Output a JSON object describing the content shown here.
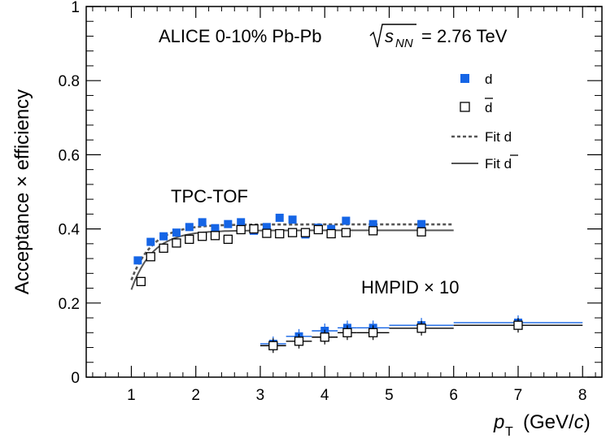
{
  "chart_data": {
    "type": "scatter",
    "title": "ALICE 0-10% Pb-Pb",
    "title_energy": "= 2.76 TeV",
    "title_sqrt": "s",
    "title_sqrt_sub": "NN",
    "xlabel_var": "p",
    "xlabel_sub": "T",
    "xlabel_units_pre": "(GeV/",
    "xlabel_units_c": "c",
    "xlabel_units_post": ")",
    "ylabel": "Acceptance × efficiency",
    "xlim": [
      0.3,
      8.3
    ],
    "ylim": [
      0,
      1
    ],
    "xticks": [
      1,
      2,
      3,
      4,
      5,
      6,
      7,
      8
    ],
    "yticks": [
      0,
      0.2,
      0.4,
      0.6,
      0.8,
      1
    ],
    "ytick_labels": [
      "0",
      "0.2",
      "0.4",
      "0.6",
      "0.8",
      "1"
    ],
    "grid": false,
    "legend_position": "top-right",
    "annotations": {
      "tpc_tof": "TPC-TOF",
      "hmpid": "HMPID × 10"
    },
    "colors": {
      "deuteron": "#1565e6",
      "antideuteron": "#000000",
      "fit": "#555555"
    },
    "series": [
      {
        "name": "d",
        "marker": "filled-square",
        "points": [
          {
            "x": 1.1,
            "y": 0.315
          },
          {
            "x": 1.3,
            "y": 0.365
          },
          {
            "x": 1.5,
            "y": 0.38
          },
          {
            "x": 1.7,
            "y": 0.39
          },
          {
            "x": 1.9,
            "y": 0.405
          },
          {
            "x": 2.1,
            "y": 0.418
          },
          {
            "x": 2.3,
            "y": 0.402
          },
          {
            "x": 2.5,
            "y": 0.413
          },
          {
            "x": 2.7,
            "y": 0.418
          },
          {
            "x": 2.9,
            "y": 0.395
          },
          {
            "x": 3.1,
            "y": 0.405
          },
          {
            "x": 3.3,
            "y": 0.43
          },
          {
            "x": 3.5,
            "y": 0.425
          },
          {
            "x": 3.7,
            "y": 0.385
          },
          {
            "x": 3.9,
            "y": 0.403
          },
          {
            "x": 4.1,
            "y": 0.4
          },
          {
            "x": 4.33,
            "y": 0.422
          },
          {
            "x": 4.75,
            "y": 0.413
          },
          {
            "x": 5.5,
            "y": 0.413
          }
        ]
      },
      {
        "name": "d̄",
        "marker": "open-square",
        "points": [
          {
            "x": 1.15,
            "y": 0.258
          },
          {
            "x": 1.3,
            "y": 0.325
          },
          {
            "x": 1.5,
            "y": 0.348
          },
          {
            "x": 1.7,
            "y": 0.362
          },
          {
            "x": 1.9,
            "y": 0.372
          },
          {
            "x": 2.1,
            "y": 0.38
          },
          {
            "x": 2.3,
            "y": 0.382
          },
          {
            "x": 2.5,
            "y": 0.372
          },
          {
            "x": 2.7,
            "y": 0.398
          },
          {
            "x": 2.9,
            "y": 0.4
          },
          {
            "x": 3.1,
            "y": 0.388
          },
          {
            "x": 3.3,
            "y": 0.387
          },
          {
            "x": 3.5,
            "y": 0.39
          },
          {
            "x": 3.7,
            "y": 0.39
          },
          {
            "x": 3.9,
            "y": 0.398
          },
          {
            "x": 4.1,
            "y": 0.387
          },
          {
            "x": 4.33,
            "y": 0.39
          },
          {
            "x": 4.75,
            "y": 0.395
          },
          {
            "x": 5.5,
            "y": 0.392
          }
        ]
      },
      {
        "name": "d (HMPID × 10)",
        "marker": "filled-square",
        "points": [
          {
            "x": 3.2,
            "y": 0.09,
            "xlo": 3.0,
            "xhi": 3.4
          },
          {
            "x": 3.6,
            "y": 0.11,
            "xlo": 3.4,
            "xhi": 3.8
          },
          {
            "x": 4.0,
            "y": 0.125,
            "xlo": 3.8,
            "xhi": 4.2
          },
          {
            "x": 4.35,
            "y": 0.133,
            "xlo": 4.2,
            "xhi": 4.5
          },
          {
            "x": 4.75,
            "y": 0.133,
            "xlo": 4.5,
            "xhi": 5.0
          },
          {
            "x": 5.5,
            "y": 0.14,
            "xlo": 5.0,
            "xhi": 6.0
          },
          {
            "x": 7.0,
            "y": 0.147,
            "xlo": 6.0,
            "xhi": 8.0
          }
        ]
      },
      {
        "name": "d̄ (HMPID × 10)",
        "marker": "open-square",
        "points": [
          {
            "x": 3.2,
            "y": 0.085,
            "xlo": 3.0,
            "xhi": 3.4
          },
          {
            "x": 3.6,
            "y": 0.097,
            "xlo": 3.4,
            "xhi": 3.8
          },
          {
            "x": 4.0,
            "y": 0.108,
            "xlo": 3.8,
            "xhi": 4.2
          },
          {
            "x": 4.35,
            "y": 0.12,
            "xlo": 4.2,
            "xhi": 4.5
          },
          {
            "x": 4.75,
            "y": 0.12,
            "xlo": 4.5,
            "xhi": 5.0
          },
          {
            "x": 5.5,
            "y": 0.132,
            "xlo": 5.0,
            "xhi": 6.0
          },
          {
            "x": 7.0,
            "y": 0.14,
            "xlo": 6.0,
            "xhi": 8.0
          }
        ]
      }
    ],
    "fits": [
      {
        "name": "Fit d",
        "style": "dashed",
        "plateau": 0.412,
        "amp": 0.15,
        "tau": 0.33,
        "x0": 1.0,
        "x_range": [
          1.0,
          6.0
        ]
      },
      {
        "name": "Fit d̄",
        "style": "solid",
        "plateau": 0.396,
        "amp": 0.16,
        "tau": 0.33,
        "x0": 1.0,
        "x_range": [
          1.0,
          6.0
        ]
      }
    ],
    "legend": [
      {
        "label": "d",
        "marker": "filled-square"
      },
      {
        "label": "d",
        "overline": true,
        "marker": "open-square"
      },
      {
        "label": "Fit d",
        "marker": "dashed-line"
      },
      {
        "label": "Fit d",
        "overline_last": true,
        "marker": "solid-line"
      }
    ]
  }
}
